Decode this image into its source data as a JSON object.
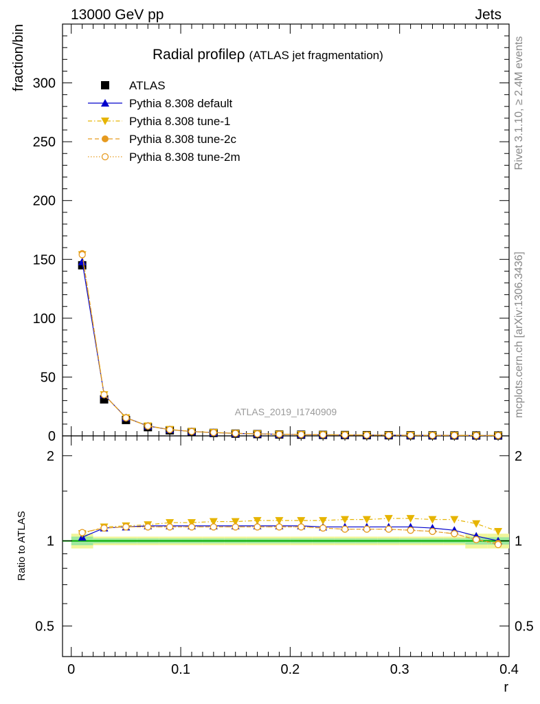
{
  "header": {
    "left": "13000 GeV pp",
    "right": "Jets"
  },
  "title": {
    "main": "Radial profile",
    "symbol": "ρ",
    "paren": "(ATLAS jet fragmentation)"
  },
  "side_text": {
    "top": "Rivet 3.1.10, ≥ 2.4M events",
    "bottom": "mcplots.cern.ch [arXiv:1306.3436]"
  },
  "watermark": "ATLAS_2019_I1740909",
  "colors": {
    "atlas": "#000000",
    "default": "#0000cc",
    "tune1": "#e6b400",
    "tune2c": "#e69a1f",
    "tune2m": "#e69a1f",
    "band_inner": "#9ee89e",
    "band_outer": "#f0f59a",
    "ratio_line": "#00aa00"
  },
  "chart_data": [
    {
      "type": "line",
      "ylabel": "fraction/bin",
      "ylim": [
        0,
        350
      ],
      "yticks": [
        "0",
        "50",
        "100",
        "150",
        "200",
        "250",
        "300"
      ],
      "x": [
        0.01,
        0.03,
        0.05,
        0.07,
        0.09,
        0.11,
        0.13,
        0.15,
        0.17,
        0.19,
        0.21,
        0.23,
        0.25,
        0.27,
        0.29,
        0.31,
        0.33,
        0.35,
        0.37,
        0.39
      ],
      "legend": [
        {
          "label": "ATLAS",
          "key": "atlas"
        },
        {
          "label": "Pythia 8.308 default",
          "key": "default"
        },
        {
          "label": "Pythia 8.308 tune-1",
          "key": "tune1"
        },
        {
          "label": "Pythia 8.308 tune-2c",
          "key": "tune2c"
        },
        {
          "label": "Pythia 8.308 tune-2m",
          "key": "tune2m"
        }
      ],
      "series": [
        {
          "name": "ATLAS",
          "key": "atlas",
          "values": [
            145,
            31,
            13.5,
            7.4,
            4.7,
            3.3,
            2.5,
            1.9,
            1.5,
            1.2,
            1.0,
            0.85,
            0.72,
            0.62,
            0.54,
            0.47,
            0.42,
            0.37,
            0.33,
            0.3
          ]
        },
        {
          "name": "Pythia 8.308 default",
          "key": "default",
          "values": [
            148,
            35,
            15.5,
            8.4,
            5.3,
            3.7,
            2.8,
            2.1,
            1.7,
            1.35,
            1.12,
            0.95,
            0.81,
            0.7,
            0.61,
            0.53,
            0.47,
            0.41,
            0.34,
            0.3
          ]
        },
        {
          "name": "Pythia 8.308 tune-1",
          "key": "tune1",
          "values": [
            154,
            35,
            15.4,
            8.5,
            5.5,
            3.8,
            2.9,
            2.2,
            1.8,
            1.43,
            1.19,
            1.0,
            0.87,
            0.75,
            0.66,
            0.57,
            0.51,
            0.45,
            0.39,
            0.34
          ]
        },
        {
          "name": "Pythia 8.308 tune-2c",
          "key": "tune2c",
          "values": [
            155,
            35,
            15.3,
            8.3,
            5.3,
            3.7,
            2.8,
            2.1,
            1.7,
            1.34,
            1.11,
            0.93,
            0.78,
            0.67,
            0.58,
            0.5,
            0.45,
            0.39,
            0.33,
            0.29
          ]
        },
        {
          "name": "Pythia 8.308 tune-2m",
          "key": "tune2m",
          "values": [
            154,
            35,
            15.3,
            8.3,
            5.3,
            3.7,
            2.8,
            2.1,
            1.7,
            1.34,
            1.11,
            0.93,
            0.78,
            0.67,
            0.58,
            0.5,
            0.45,
            0.39,
            0.33,
            0.29
          ]
        }
      ]
    },
    {
      "type": "line",
      "ylabel": "Ratio to ATLAS",
      "xlabel": "r",
      "ylim": [
        0.39,
        2.35
      ],
      "log_y": true,
      "yticks": [
        "0.5",
        "1",
        "2"
      ],
      "xlim": [
        -0.008,
        0.4
      ],
      "xticks": [
        "0",
        "0.1",
        "0.2",
        "0.3",
        "0.4"
      ],
      "x": [
        0.01,
        0.03,
        0.05,
        0.07,
        0.09,
        0.11,
        0.13,
        0.15,
        0.17,
        0.19,
        0.21,
        0.23,
        0.25,
        0.27,
        0.29,
        0.31,
        0.33,
        0.35,
        0.37,
        0.39
      ],
      "band_inner": [
        0.035,
        0.02,
        0.02,
        0.02,
        0.02,
        0.02,
        0.02,
        0.02,
        0.02,
        0.02,
        0.02,
        0.02,
        0.02,
        0.02,
        0.02,
        0.02,
        0.02,
        0.02,
        0.03,
        0.03
      ],
      "band_outer": [
        0.06,
        0.035,
        0.035,
        0.035,
        0.035,
        0.035,
        0.035,
        0.035,
        0.035,
        0.035,
        0.035,
        0.035,
        0.035,
        0.035,
        0.035,
        0.035,
        0.035,
        0.035,
        0.06,
        0.06
      ],
      "series": [
        {
          "name": "Pythia 8.308 default",
          "key": "default",
          "values": [
            1.03,
            1.11,
            1.12,
            1.13,
            1.13,
            1.13,
            1.13,
            1.13,
            1.13,
            1.13,
            1.13,
            1.12,
            1.12,
            1.12,
            1.12,
            1.12,
            1.11,
            1.09,
            1.04,
            1.0
          ]
        },
        {
          "name": "Pythia 8.308 tune-1",
          "key": "tune1",
          "values": [
            1.06,
            1.12,
            1.13,
            1.14,
            1.16,
            1.16,
            1.17,
            1.17,
            1.18,
            1.18,
            1.18,
            1.18,
            1.19,
            1.19,
            1.2,
            1.2,
            1.19,
            1.19,
            1.15,
            1.08
          ]
        },
        {
          "name": "Pythia 8.308 tune-2c",
          "key": "tune2c",
          "values": [
            1.07,
            1.11,
            1.12,
            1.12,
            1.12,
            1.12,
            1.12,
            1.12,
            1.12,
            1.12,
            1.12,
            1.11,
            1.1,
            1.1,
            1.1,
            1.09,
            1.08,
            1.06,
            1.01,
            0.98
          ]
        },
        {
          "name": "Pythia 8.308 tune-2m",
          "key": "tune2m",
          "values": [
            1.07,
            1.11,
            1.12,
            1.12,
            1.12,
            1.12,
            1.12,
            1.12,
            1.12,
            1.12,
            1.12,
            1.11,
            1.1,
            1.1,
            1.1,
            1.09,
            1.08,
            1.06,
            1.01,
            0.97
          ]
        }
      ]
    }
  ]
}
